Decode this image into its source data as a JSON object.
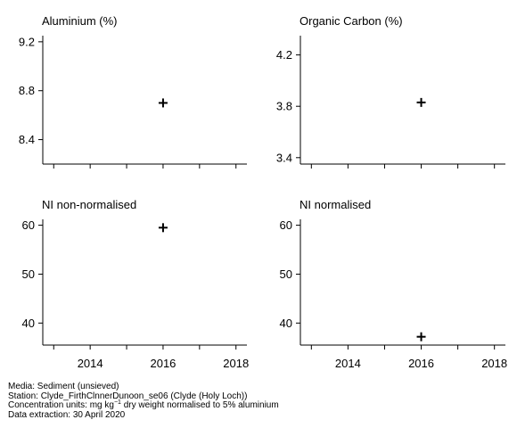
{
  "chart_data": [
    {
      "type": "scatter",
      "title": "Aluminium (%)",
      "x": [
        2016
      ],
      "y": [
        8.7
      ],
      "xlim": [
        2012.7,
        2018.3
      ],
      "ylim": [
        8.2,
        9.25
      ],
      "yticks": [
        8.4,
        8.8,
        9.2
      ],
      "yticklabels": [
        "8.4",
        "8.8",
        "9.2"
      ],
      "xticks": [
        2013,
        2014,
        2015,
        2016,
        2017,
        2018
      ],
      "xticklabels": [],
      "marker": "plus"
    },
    {
      "type": "scatter",
      "title": "Organic Carbon (%)",
      "x": [
        2016
      ],
      "y": [
        3.83
      ],
      "xlim": [
        2012.7,
        2018.3
      ],
      "ylim": [
        3.35,
        4.35
      ],
      "yticks": [
        3.4,
        3.8,
        4.2
      ],
      "yticklabels": [
        "3.4",
        "3.8",
        "4.2"
      ],
      "xticks": [
        2013,
        2014,
        2015,
        2016,
        2017,
        2018
      ],
      "xticklabels": [],
      "marker": "plus"
    },
    {
      "type": "scatter",
      "title": "NI non-normalised",
      "x": [
        2016
      ],
      "y": [
        59.5
      ],
      "xlim": [
        2012.7,
        2018.3
      ],
      "ylim": [
        35.5,
        61.2
      ],
      "yticks": [
        40,
        50,
        60
      ],
      "yticklabels": [
        "40",
        "50",
        "60"
      ],
      "xticks": [
        2013,
        2014,
        2015,
        2016,
        2017,
        2018
      ],
      "xticklabels": [
        "2014",
        "2016",
        "2018"
      ],
      "xticklabel_values": [
        2014,
        2016,
        2018
      ],
      "marker": "plus"
    },
    {
      "type": "scatter",
      "title": "NI normalised",
      "x": [
        2016
      ],
      "y": [
        37.2
      ],
      "xlim": [
        2012.7,
        2018.3
      ],
      "ylim": [
        35.5,
        61.2
      ],
      "yticks": [
        40,
        50,
        60
      ],
      "yticklabels": [
        "40",
        "50",
        "60"
      ],
      "xticks": [
        2013,
        2014,
        2015,
        2016,
        2017,
        2018
      ],
      "xticklabels": [
        "2014",
        "2016",
        "2018"
      ],
      "xticklabel_values": [
        2014,
        2016,
        2018
      ],
      "marker": "plus"
    }
  ],
  "footer": {
    "media": "Media: Sediment (unsieved)",
    "station": "Station: Clyde_FirthClnnerDunoon_se06 (Clyde (Holy Loch))",
    "units_prefix": "Concentration units:  mg kg",
    "units_exponent": "−1",
    "units_suffix": " dry weight normalised to 5% aluminium",
    "extraction": "Data extraction: 30 April 2020"
  }
}
